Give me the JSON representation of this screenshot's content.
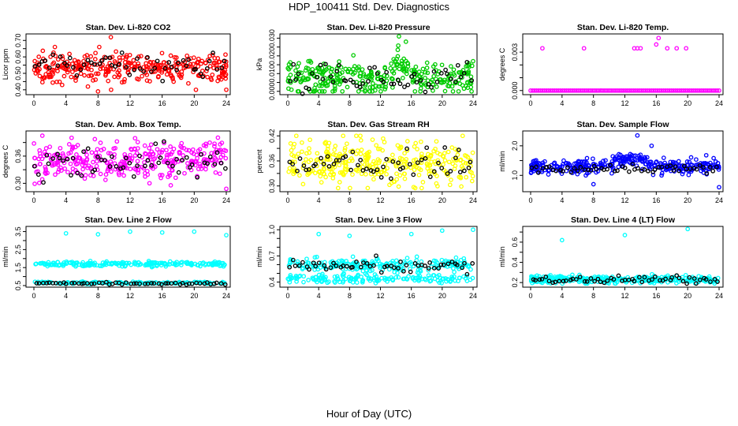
{
  "page": {
    "title": "HDP_100411  Std. Dev. Diagnostics",
    "xlabel": "Hour of Day (UTC)"
  },
  "chart_data": [
    {
      "type": "scatter",
      "title": "Stan. Dev. Li-820 CO2",
      "ylabel": "Licor ppm",
      "color": "#ff0000",
      "xticks": [
        0,
        4,
        8,
        12,
        16,
        20,
        24
      ],
      "xlim": [
        0,
        24
      ],
      "yticks": [
        0.4,
        0.45,
        0.5,
        0.55,
        0.6,
        0.65,
        0.7
      ],
      "ytick_labels": [
        "0.40",
        "",
        "0.50",
        "",
        "0.60",
        "",
        "0.70"
      ],
      "ylim": [
        0.38,
        0.73
      ],
      "series": {
        "main": {
          "n": 330,
          "center": 0.535,
          "spread": 0.042,
          "min": 0.4,
          "max": 0.66,
          "outliers": [
            [
              8.0,
              0.39
            ],
            [
              9.6,
              0.72
            ],
            [
              24.0,
              0.4
            ]
          ]
        },
        "black": {
          "n": 55,
          "center": 0.55,
          "spread": 0.035
        }
      }
    },
    {
      "type": "scatter",
      "title": "Stan. Dev. Li-820 Pressure",
      "ylabel": "kPa",
      "color": "#00cc00",
      "xticks": [
        0,
        4,
        8,
        12,
        16,
        20,
        24
      ],
      "xlim": [
        0,
        24
      ],
      "yticks": [
        0.0,
        0.005,
        0.01,
        0.015,
        0.02,
        0.025,
        0.03
      ],
      "ytick_labels": [
        "0.000",
        "",
        "0.010",
        "",
        "0.020",
        "",
        "0.030"
      ],
      "ylim": [
        -0.001,
        0.0315
      ],
      "series": {
        "main": {
          "n": 330,
          "center": 0.008,
          "spread": 0.005,
          "min": 0.0,
          "max": 0.028,
          "outliers": [
            [
              14.4,
              0.031
            ],
            [
              15.3,
              0.028
            ],
            [
              24.0,
              0.017
            ]
          ]
        },
        "black": {
          "n": 55,
          "center": 0.007,
          "spread": 0.004
        }
      }
    },
    {
      "type": "scatter",
      "title": "Stan. Dev. Li-820 Temp.",
      "ylabel": "degrees C",
      "color": "#ff00ff",
      "xticks": [
        0,
        4,
        8,
        12,
        16,
        20,
        24
      ],
      "xlim": [
        0,
        24
      ],
      "yticks": [
        0.0,
        0.001,
        0.002,
        0.003
      ],
      "ytick_labels": [
        "0.000",
        "",
        "",
        "0.003"
      ],
      "ylim": [
        -0.0002,
        0.0043
      ],
      "series": {
        "main": {
          "n": 96,
          "center": 0.0,
          "spread": 0.0,
          "min": 0.0,
          "max": 0.0,
          "outliers": [
            [
              1.5,
              0.0033
            ],
            [
              6.8,
              0.0033
            ],
            [
              13.2,
              0.0033
            ],
            [
              13.6,
              0.0033
            ],
            [
              14.0,
              0.0033
            ],
            [
              16.0,
              0.0036
            ],
            [
              16.3,
              0.0041
            ],
            [
              17.4,
              0.0033
            ],
            [
              18.6,
              0.0033
            ],
            [
              19.8,
              0.0033
            ]
          ]
        },
        "black": {
          "n": 0,
          "center": 0.0,
          "spread": 0.0
        }
      }
    },
    {
      "type": "scatter",
      "title": "Stan. Dev. Amb. Box Temp.",
      "ylabel": "degrees C",
      "color": "#ff00ff",
      "xticks": [
        0,
        4,
        8,
        12,
        16,
        20,
        24
      ],
      "xlim": [
        0,
        24
      ],
      "yticks": [
        0.3,
        0.33,
        0.36,
        0.39
      ],
      "ytick_labels": [
        "0.30",
        "",
        "0.36",
        ""
      ],
      "ylim": [
        0.285,
        0.412
      ],
      "series": {
        "main": {
          "n": 330,
          "center": 0.352,
          "spread": 0.022,
          "min": 0.29,
          "max": 0.405,
          "outliers": [
            [
              24.0,
              0.288
            ]
          ]
        },
        "black": {
          "n": 55,
          "center": 0.35,
          "spread": 0.02
        }
      }
    },
    {
      "type": "scatter",
      "title": "Stan. Dev. Gas Stream RH",
      "ylabel": "percent",
      "color": "#ffff00",
      "xticks": [
        0,
        4,
        8,
        12,
        16,
        20,
        24
      ],
      "xlim": [
        0,
        24
      ],
      "yticks": [
        0.3,
        0.33,
        0.36,
        0.39,
        0.42
      ],
      "ytick_labels": [
        "0.30",
        "",
        "0.36",
        "",
        "0.42"
      ],
      "ylim": [
        0.29,
        0.428
      ],
      "series": {
        "main": {
          "n": 330,
          "center": 0.355,
          "spread": 0.025,
          "min": 0.295,
          "max": 0.42,
          "outliers": []
        },
        "black": {
          "n": 55,
          "center": 0.355,
          "spread": 0.02
        }
      }
    },
    {
      "type": "scatter",
      "title": "Stan. Dev. Sample Flow",
      "ylabel": "ml/min",
      "color": "#0000ff",
      "xticks": [
        0,
        4,
        8,
        12,
        16,
        20,
        24
      ],
      "xlim": [
        0,
        24
      ],
      "yticks": [
        1.0,
        1.5,
        2.0
      ],
      "ytick_labels": [
        "1.0",
        "",
        "2.0"
      ],
      "ylim": [
        0.5,
        2.45
      ],
      "series": {
        "main": {
          "n": 330,
          "center": 1.3,
          "spread": 0.12,
          "min": 1.0,
          "max": 1.9,
          "outliers": [
            [
              8.0,
              0.7
            ],
            [
              13.6,
              2.35
            ],
            [
              15.4,
              2.0
            ],
            [
              24.0,
              0.6
            ]
          ]
        },
        "black": {
          "n": 55,
          "center": 1.2,
          "spread": 0.08
        }
      }
    },
    {
      "type": "scatter",
      "title": "Stan. Dev. Line 2 Flow",
      "ylabel": "ml/min",
      "color": "#00ffff",
      "xticks": [
        0,
        4,
        8,
        12,
        16,
        20,
        24
      ],
      "xlim": [
        0,
        24
      ],
      "yticks": [
        0.5,
        1.0,
        1.5,
        2.0,
        2.5,
        3.0,
        3.5
      ],
      "ytick_labels": [
        "0.5",
        "",
        "1.5",
        "",
        "2.5",
        "",
        "3.5"
      ],
      "ylim": [
        0.5,
        3.7
      ],
      "series": {
        "main": {
          "n": 200,
          "center": 1.7,
          "spread": 0.07,
          "min": 1.5,
          "max": 1.95,
          "outliers": [
            [
              4.0,
              3.4
            ],
            [
              8.0,
              3.35
            ],
            [
              12.0,
              3.5
            ],
            [
              16.0,
              3.45
            ],
            [
              20.0,
              3.5
            ],
            [
              24.0,
              3.3
            ]
          ]
        },
        "band2": {
          "n": 160,
          "center": 0.65,
          "spread": 0.03
        },
        "black": {
          "n": 55,
          "center": 0.62,
          "spread": 0.03
        }
      }
    },
    {
      "type": "scatter",
      "title": "Stan. Dev. Line 3 Flow",
      "ylabel": "ml/min",
      "color": "#00ffff",
      "xticks": [
        0,
        4,
        8,
        12,
        16,
        20,
        24
      ],
      "xlim": [
        0,
        24
      ],
      "yticks": [
        0.4,
        0.5,
        0.6,
        0.7,
        0.8,
        0.9,
        1.0
      ],
      "ytick_labels": [
        "0.4",
        "",
        "",
        "0.7",
        "",
        "",
        "1.0"
      ],
      "ylim": [
        0.36,
        1.02
      ],
      "series": {
        "main": {
          "n": 200,
          "center": 0.6,
          "spread": 0.04,
          "min": 0.5,
          "max": 0.75,
          "outliers": [
            [
              4.0,
              0.95
            ],
            [
              8.0,
              0.93
            ],
            [
              16.0,
              0.95
            ],
            [
              20.0,
              0.99
            ],
            [
              24.0,
              1.0
            ]
          ]
        },
        "band2": {
          "n": 160,
          "center": 0.44,
          "spread": 0.025
        },
        "black": {
          "n": 55,
          "center": 0.58,
          "spread": 0.04
        }
      }
    },
    {
      "type": "scatter",
      "title": "Stan. Dev. Line 4 (LT) Flow",
      "ylabel": "ml/min",
      "color": "#00ffff",
      "xticks": [
        0,
        4,
        8,
        12,
        16,
        20,
        24
      ],
      "xlim": [
        0,
        24
      ],
      "yticks": [
        0.2,
        0.3,
        0.4,
        0.5,
        0.6,
        0.7
      ],
      "ytick_labels": [
        "0.2",
        "",
        "0.4",
        "",
        "0.6",
        ""
      ],
      "ylim": [
        0.17,
        0.74
      ],
      "series": {
        "main": {
          "n": 330,
          "center": 0.23,
          "spread": 0.018,
          "min": 0.19,
          "max": 0.3,
          "outliers": [
            [
              4.0,
              0.62
            ],
            [
              12.0,
              0.67
            ],
            [
              20.0,
              0.73
            ]
          ]
        },
        "black": {
          "n": 55,
          "center": 0.23,
          "spread": 0.02
        }
      }
    }
  ]
}
